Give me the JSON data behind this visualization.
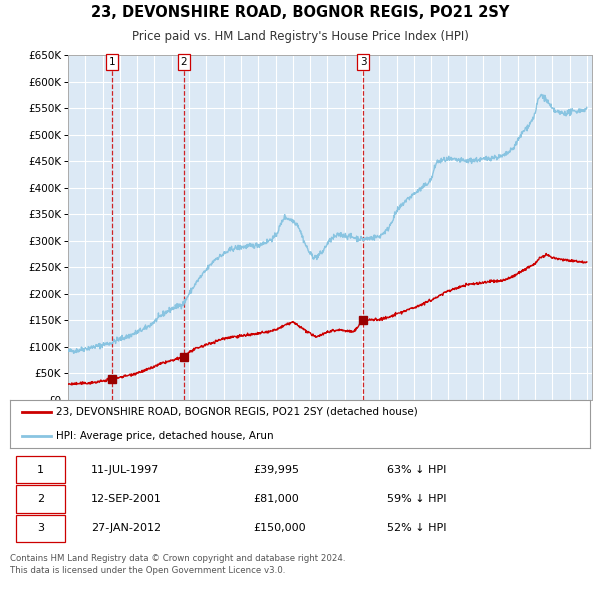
{
  "title": "23, DEVONSHIRE ROAD, BOGNOR REGIS, PO21 2SY",
  "subtitle": "Price paid vs. HM Land Registry's House Price Index (HPI)",
  "bg_color": "#ffffff",
  "plot_bg_color": "#dce9f5",
  "grid_color": "#ffffff",
  "hpi_color": "#89c4e1",
  "price_color": "#cc0000",
  "sale_marker_color": "#990000",
  "vline_color": "#cc0000",
  "ylim": [
    0,
    650000
  ],
  "yticks": [
    0,
    50000,
    100000,
    150000,
    200000,
    250000,
    300000,
    350000,
    400000,
    450000,
    500000,
    550000,
    600000,
    650000
  ],
  "ytick_labels": [
    "£0",
    "£50K",
    "£100K",
    "£150K",
    "£200K",
    "£250K",
    "£300K",
    "£350K",
    "£400K",
    "£450K",
    "£500K",
    "£550K",
    "£600K",
    "£650K"
  ],
  "sales": [
    {
      "num": 1,
      "date": "11-JUL-1997",
      "price": 39995,
      "price_str": "£39,995",
      "pct": "63%",
      "x_year": 1997.53
    },
    {
      "num": 2,
      "date": "12-SEP-2001",
      "price": 81000,
      "price_str": "£81,000",
      "pct": "59%",
      "x_year": 2001.7
    },
    {
      "num": 3,
      "date": "27-JAN-2012",
      "price": 150000,
      "price_str": "£150,000",
      "pct": "52%",
      "x_year": 2012.07
    }
  ],
  "legend_label_price": "23, DEVONSHIRE ROAD, BOGNOR REGIS, PO21 2SY (detached house)",
  "legend_label_hpi": "HPI: Average price, detached house, Arun",
  "footer1": "Contains HM Land Registry data © Crown copyright and database right 2024.",
  "footer2": "This data is licensed under the Open Government Licence v3.0.",
  "xmin": 1995.0,
  "xmax": 2025.3
}
